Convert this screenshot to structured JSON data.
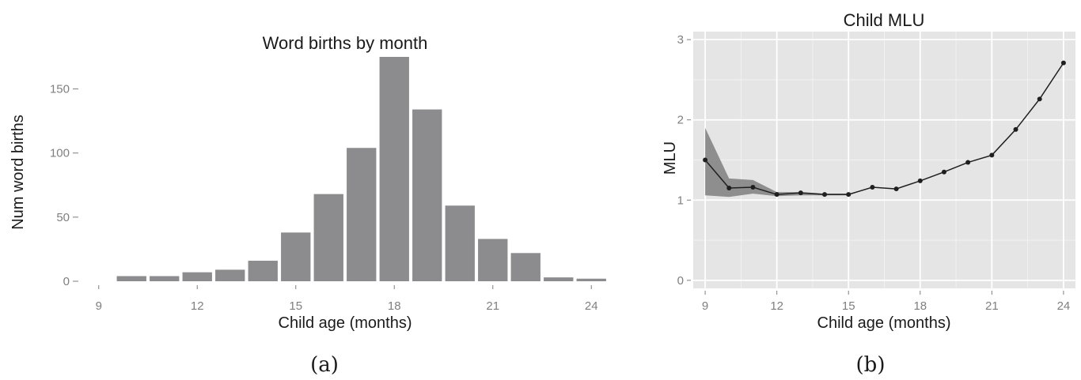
{
  "chart_data": [
    {
      "type": "bar",
      "title": "Word births by month",
      "xlabel": "Child age (months)",
      "ylabel": "Num word births",
      "caption": "(a)",
      "categories": [
        9,
        10,
        11,
        12,
        13,
        14,
        15,
        16,
        17,
        18,
        19,
        20,
        21,
        22,
        23,
        24
      ],
      "values": [
        0,
        4,
        4,
        7,
        9,
        16,
        38,
        68,
        104,
        175,
        134,
        59,
        33,
        22,
        3,
        2
      ],
      "xticks": [
        "9",
        "12",
        "15",
        "18",
        "21",
        "24"
      ],
      "yticks": [
        "0",
        "50",
        "100",
        "150"
      ],
      "xlim": [
        8.5,
        24.5
      ],
      "ylim": [
        0,
        175
      ],
      "bar_color": "#8c8c8f",
      "grid": false
    },
    {
      "type": "line",
      "title": "Child MLU",
      "xlabel": "Child age (months)",
      "ylabel": "MLU",
      "caption": "(b)",
      "x": [
        9,
        10,
        11,
        12,
        13,
        14,
        15,
        16,
        17,
        18,
        19,
        20,
        21,
        22,
        23,
        24
      ],
      "y": [
        1.5,
        1.15,
        1.16,
        1.07,
        1.09,
        1.07,
        1.07,
        1.16,
        1.14,
        1.24,
        1.35,
        1.47,
        1.56,
        1.88,
        2.26,
        2.71
      ],
      "ci_upper": [
        1.9,
        1.27,
        1.25,
        1.1,
        1.1,
        1.08,
        1.08,
        1.16,
        1.14,
        1.24,
        1.35,
        1.47,
        1.56,
        1.88,
        2.26,
        2.71
      ],
      "ci_lower": [
        1.06,
        1.04,
        1.08,
        1.05,
        1.06,
        1.06,
        1.06,
        1.16,
        1.14,
        1.24,
        1.35,
        1.47,
        1.56,
        1.88,
        2.26,
        2.71
      ],
      "xticks": [
        "9",
        "12",
        "15",
        "18",
        "21",
        "24"
      ],
      "yticks": [
        "0",
        "1",
        "2",
        "3"
      ],
      "xlim": [
        8.5,
        24.5
      ],
      "ylim": [
        -0.1,
        3.1
      ],
      "panel_color": "#e5e5e5",
      "grid_color": "#ffffff",
      "band_color": "#7f7f7f",
      "line_color": "#1f1f1f",
      "grid": true
    }
  ]
}
